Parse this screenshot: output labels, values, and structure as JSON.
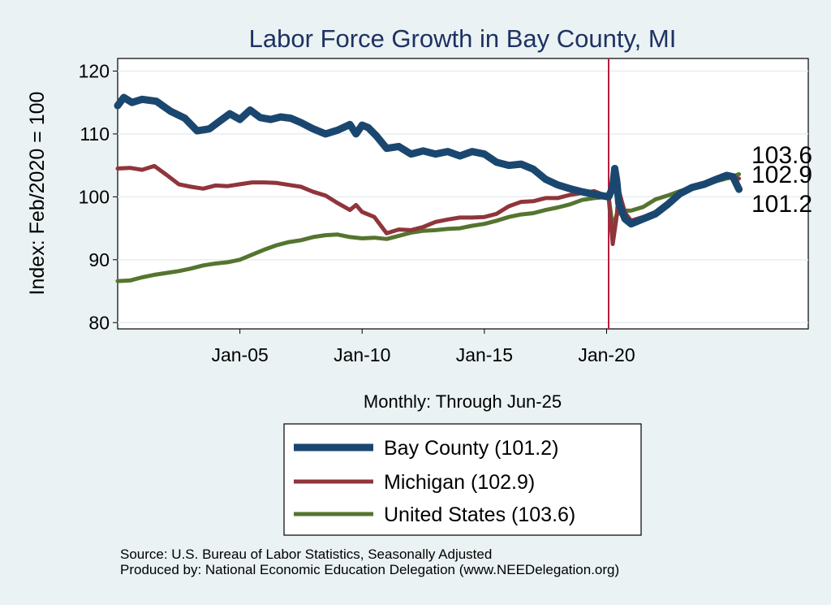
{
  "chart_data": {
    "type": "line",
    "title": "Labor Force Growth in Bay  County, MI",
    "ylabel": "Index: Feb/2020 = 100",
    "xlabel": "Monthly: Through Jun-25",
    "ylim": [
      79,
      122
    ],
    "yticks": [
      80,
      90,
      100,
      110,
      120
    ],
    "xlim": [
      "2000-01",
      "2028-04"
    ],
    "xticks": [
      {
        "date": "2005-01",
        "label": "Jan-05"
      },
      {
        "date": "2010-01",
        "label": "Jan-10"
      },
      {
        "date": "2015-01",
        "label": "Jan-15"
      },
      {
        "date": "2020-01",
        "label": "Jan-20"
      }
    ],
    "reference_line": {
      "date": "2020-02",
      "color": "#b51c3e"
    },
    "grid": true,
    "legend_position": "bottom",
    "series": [
      {
        "name": "Bay  County (101.2)",
        "color": "#1a476f",
        "end_label": "101.2",
        "points": [
          [
            "2000-01",
            114.5
          ],
          [
            "2000-04",
            115.8
          ],
          [
            "2000-08",
            115.0
          ],
          [
            "2001-01",
            115.5
          ],
          [
            "2001-08",
            115.2
          ],
          [
            "2002-03",
            113.6
          ],
          [
            "2002-10",
            112.5
          ],
          [
            "2003-04",
            110.5
          ],
          [
            "2003-10",
            110.8
          ],
          [
            "2004-03",
            112.0
          ],
          [
            "2004-08",
            113.2
          ],
          [
            "2005-01",
            112.3
          ],
          [
            "2005-06",
            113.8
          ],
          [
            "2005-11",
            112.6
          ],
          [
            "2006-04",
            112.3
          ],
          [
            "2006-09",
            112.7
          ],
          [
            "2007-02",
            112.5
          ],
          [
            "2007-07",
            111.8
          ],
          [
            "2008-01",
            110.8
          ],
          [
            "2008-07",
            110.0
          ],
          [
            "2009-01",
            110.6
          ],
          [
            "2009-07",
            111.5
          ],
          [
            "2009-10",
            110.0
          ],
          [
            "2010-01",
            111.4
          ],
          [
            "2010-04",
            111.0
          ],
          [
            "2010-08",
            109.7
          ],
          [
            "2011-01",
            107.7
          ],
          [
            "2011-07",
            108.0
          ],
          [
            "2012-01",
            106.8
          ],
          [
            "2012-07",
            107.3
          ],
          [
            "2013-01",
            106.8
          ],
          [
            "2013-07",
            107.2
          ],
          [
            "2014-01",
            106.5
          ],
          [
            "2014-07",
            107.2
          ],
          [
            "2015-01",
            106.8
          ],
          [
            "2015-07",
            105.5
          ],
          [
            "2016-01",
            105.0
          ],
          [
            "2016-07",
            105.2
          ],
          [
            "2017-01",
            104.4
          ],
          [
            "2017-07",
            102.8
          ],
          [
            "2018-01",
            101.9
          ],
          [
            "2018-07",
            101.3
          ],
          [
            "2019-01",
            100.8
          ],
          [
            "2019-07",
            100.4
          ],
          [
            "2020-02",
            100.0
          ],
          [
            "2020-04",
            101.5
          ],
          [
            "2020-05",
            104.5
          ],
          [
            "2020-06",
            102.5
          ],
          [
            "2020-07",
            99.0
          ],
          [
            "2020-10",
            96.5
          ],
          [
            "2021-01",
            95.7
          ],
          [
            "2021-07",
            96.5
          ],
          [
            "2022-01",
            97.3
          ],
          [
            "2022-07",
            98.8
          ],
          [
            "2023-01",
            100.5
          ],
          [
            "2023-07",
            101.5
          ],
          [
            "2024-01",
            102.0
          ],
          [
            "2024-07",
            102.8
          ],
          [
            "2024-12",
            103.4
          ],
          [
            "2025-03",
            103.2
          ],
          [
            "2025-06",
            101.2
          ]
        ]
      },
      {
        "name": "Michigan (102.9)",
        "color": "#90353b",
        "end_label": "102.9",
        "points": [
          [
            "2000-01",
            104.5
          ],
          [
            "2000-07",
            104.6
          ],
          [
            "2001-01",
            104.3
          ],
          [
            "2001-07",
            104.9
          ],
          [
            "2002-01",
            103.5
          ],
          [
            "2002-07",
            102.0
          ],
          [
            "2003-01",
            101.6
          ],
          [
            "2003-07",
            101.3
          ],
          [
            "2004-01",
            101.8
          ],
          [
            "2004-07",
            101.7
          ],
          [
            "2005-01",
            102.0
          ],
          [
            "2005-07",
            102.3
          ],
          [
            "2006-01",
            102.3
          ],
          [
            "2006-07",
            102.2
          ],
          [
            "2007-01",
            101.9
          ],
          [
            "2007-07",
            101.6
          ],
          [
            "2008-01",
            100.8
          ],
          [
            "2008-07",
            100.2
          ],
          [
            "2009-01",
            99.0
          ],
          [
            "2009-07",
            97.9
          ],
          [
            "2009-10",
            98.7
          ],
          [
            "2010-01",
            97.6
          ],
          [
            "2010-07",
            96.8
          ],
          [
            "2011-01",
            94.2
          ],
          [
            "2011-07",
            94.8
          ],
          [
            "2012-01",
            94.7
          ],
          [
            "2012-07",
            95.2
          ],
          [
            "2013-01",
            96.0
          ],
          [
            "2013-07",
            96.4
          ],
          [
            "2014-01",
            96.7
          ],
          [
            "2014-07",
            96.7
          ],
          [
            "2015-01",
            96.8
          ],
          [
            "2015-07",
            97.3
          ],
          [
            "2016-01",
            98.5
          ],
          [
            "2016-07",
            99.2
          ],
          [
            "2017-01",
            99.3
          ],
          [
            "2017-07",
            99.8
          ],
          [
            "2018-01",
            99.8
          ],
          [
            "2018-07",
            100.3
          ],
          [
            "2019-01",
            100.6
          ],
          [
            "2019-07",
            100.9
          ],
          [
            "2020-02",
            100.0
          ],
          [
            "2020-04",
            92.5
          ],
          [
            "2020-06",
            97.0
          ],
          [
            "2020-07",
            101.0
          ],
          [
            "2020-10",
            97.5
          ],
          [
            "2021-01",
            96.2
          ],
          [
            "2021-07",
            96.8
          ],
          [
            "2022-01",
            97.6
          ],
          [
            "2022-07",
            98.6
          ],
          [
            "2023-01",
            100.3
          ],
          [
            "2023-07",
            101.5
          ],
          [
            "2024-01",
            102.0
          ],
          [
            "2024-07",
            102.6
          ],
          [
            "2025-01",
            103.3
          ],
          [
            "2025-06",
            102.9
          ]
        ]
      },
      {
        "name": "United States (103.6)",
        "color": "#55752f",
        "end_label": "103.6",
        "points": [
          [
            "2000-01",
            86.6
          ],
          [
            "2000-07",
            86.7
          ],
          [
            "2001-01",
            87.2
          ],
          [
            "2001-07",
            87.6
          ],
          [
            "2002-01",
            87.9
          ],
          [
            "2002-07",
            88.2
          ],
          [
            "2003-01",
            88.6
          ],
          [
            "2003-07",
            89.1
          ],
          [
            "2004-01",
            89.4
          ],
          [
            "2004-07",
            89.6
          ],
          [
            "2005-01",
            90.0
          ],
          [
            "2005-07",
            90.8
          ],
          [
            "2006-01",
            91.6
          ],
          [
            "2006-07",
            92.3
          ],
          [
            "2007-01",
            92.8
          ],
          [
            "2007-07",
            93.1
          ],
          [
            "2008-01",
            93.6
          ],
          [
            "2008-07",
            93.9
          ],
          [
            "2009-01",
            94.0
          ],
          [
            "2009-07",
            93.6
          ],
          [
            "2010-01",
            93.4
          ],
          [
            "2010-07",
            93.5
          ],
          [
            "2011-01",
            93.3
          ],
          [
            "2011-07",
            93.8
          ],
          [
            "2012-01",
            94.3
          ],
          [
            "2012-07",
            94.6
          ],
          [
            "2013-01",
            94.7
          ],
          [
            "2013-07",
            94.9
          ],
          [
            "2014-01",
            95.0
          ],
          [
            "2014-07",
            95.4
          ],
          [
            "2015-01",
            95.7
          ],
          [
            "2015-07",
            96.2
          ],
          [
            "2016-01",
            96.8
          ],
          [
            "2016-07",
            97.2
          ],
          [
            "2017-01",
            97.4
          ],
          [
            "2017-07",
            97.9
          ],
          [
            "2018-01",
            98.3
          ],
          [
            "2018-07",
            98.8
          ],
          [
            "2019-01",
            99.5
          ],
          [
            "2019-07",
            99.8
          ],
          [
            "2020-02",
            100.0
          ],
          [
            "2020-04",
            95.1
          ],
          [
            "2020-06",
            97.2
          ],
          [
            "2020-10",
            97.8
          ],
          [
            "2021-01",
            97.8
          ],
          [
            "2021-07",
            98.4
          ],
          [
            "2022-01",
            99.6
          ],
          [
            "2022-07",
            100.2
          ],
          [
            "2023-01",
            100.9
          ],
          [
            "2023-07",
            101.5
          ],
          [
            "2024-01",
            102.1
          ],
          [
            "2024-07",
            102.5
          ],
          [
            "2025-01",
            103.0
          ],
          [
            "2025-06",
            103.6
          ]
        ]
      }
    ]
  },
  "source": {
    "line1": "Source: U.S. Bureau of Labor Statistics, Seasonally Adjusted",
    "line2": "Produced by: National Economic Education Delegation (www.NEEDelegation.org)"
  }
}
